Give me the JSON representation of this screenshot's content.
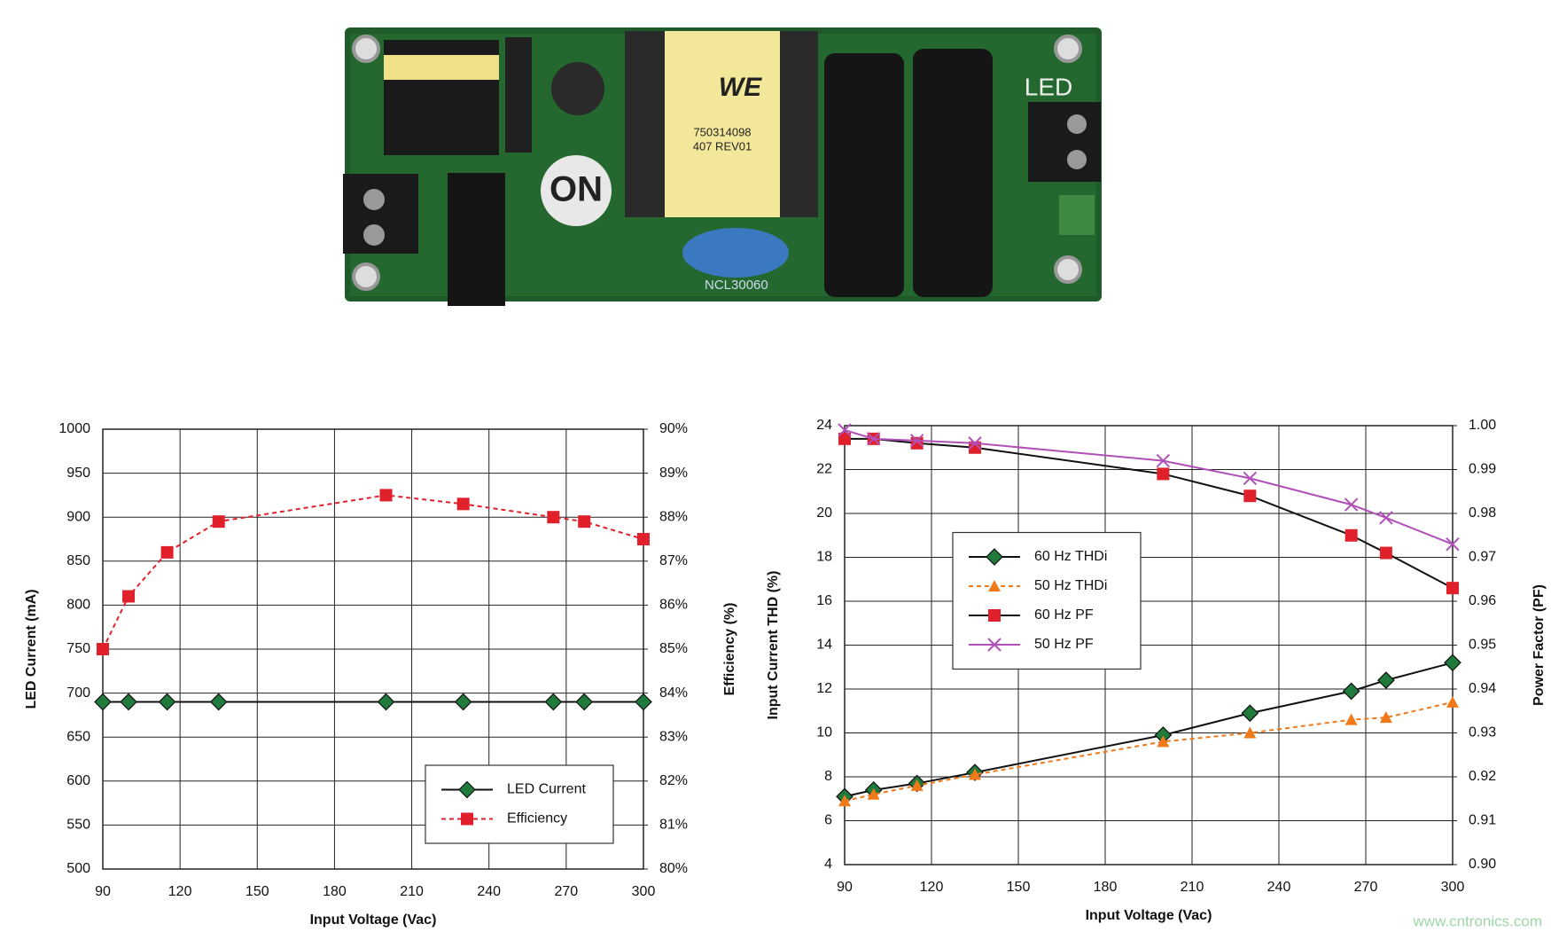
{
  "photo": {
    "connector_label": "LED",
    "logo": "ON",
    "part_number": "NCL30060",
    "transformer_brand": "WE",
    "transformer_code": "750314098",
    "transformer_rev": "407 REV01"
  },
  "chart_data": [
    {
      "type": "line",
      "x_label": "Input Voltage (Vac)",
      "y_label": "LED Current (mA)",
      "y2_label": "Efficiency (%)",
      "x": [
        90,
        100,
        115,
        135,
        200,
        230,
        265,
        277,
        300
      ],
      "xlim": [
        90,
        300
      ],
      "xticks": [
        90,
        120,
        150,
        180,
        210,
        240,
        270,
        300
      ],
      "ylim": [
        500,
        1000
      ],
      "yticks": [
        500,
        550,
        600,
        650,
        700,
        750,
        800,
        850,
        900,
        950,
        1000
      ],
      "y2lim": [
        80,
        90
      ],
      "y2ticks": [
        {
          "value": 80,
          "label": "80%"
        },
        {
          "value": 81,
          "label": "81%"
        },
        {
          "value": 82,
          "label": "82%"
        },
        {
          "value": 83,
          "label": "83%"
        },
        {
          "value": 84,
          "label": "84%"
        },
        {
          "value": 85,
          "label": "85%"
        },
        {
          "value": 86,
          "label": "86%"
        },
        {
          "value": 87,
          "label": "87%"
        },
        {
          "value": 88,
          "label": "88%"
        },
        {
          "value": 89,
          "label": "89%"
        },
        {
          "value": 90,
          "label": "90%"
        }
      ],
      "grid": true,
      "legend": "lower right",
      "series": [
        {
          "name": "LED Current",
          "color": "#1f7a3c",
          "line_color": "#111111",
          "marker": "diamond",
          "dashed": false,
          "values": [
            690,
            690,
            690,
            690,
            690,
            690,
            690,
            690,
            690
          ]
        },
        {
          "name": "Efficiency",
          "color": "#e0202a",
          "line_color": "#e0202a",
          "marker": "square",
          "dashed": true,
          "axis": "y2",
          "values": [
            85.0,
            86.2,
            87.2,
            87.9,
            88.5,
            88.3,
            88.0,
            87.9,
            87.5
          ]
        }
      ]
    },
    {
      "type": "line",
      "x_label": "Input Voltage (Vac)",
      "y_label": "Input Current THD (%)",
      "y2_label": "Power Factor (PF)",
      "x": [
        90,
        100,
        115,
        135,
        200,
        230,
        265,
        277,
        300
      ],
      "xlim": [
        90,
        300
      ],
      "xticks": [
        90,
        120,
        150,
        180,
        210,
        240,
        270,
        300
      ],
      "ylim": [
        4,
        24
      ],
      "yticks": [
        4,
        6,
        8,
        10,
        12,
        14,
        16,
        18,
        20,
        22,
        24
      ],
      "y2lim": [
        0.9,
        1.0
      ],
      "y2ticks": [
        {
          "value": 0.9,
          "label": "0.90"
        },
        0.91,
        0.92,
        0.93,
        0.94,
        0.95,
        0.96,
        0.97,
        0.98,
        0.99,
        {
          "value": 1.0,
          "label": "1.00"
        }
      ],
      "grid": true,
      "legend": "center left",
      "series": [
        {
          "name": "60 Hz THDi",
          "color": "#1f7a3c",
          "line_color": "#111111",
          "marker": "diamond",
          "dashed": false,
          "values": [
            7.1,
            7.4,
            7.7,
            8.2,
            9.9,
            10.9,
            11.9,
            12.4,
            13.2
          ]
        },
        {
          "name": "50 Hz THDi",
          "color": "#f07a1a",
          "line_color": "#f07a1a",
          "marker": "triangle",
          "dashed": true,
          "values": [
            6.9,
            7.2,
            7.6,
            8.1,
            9.6,
            10.0,
            10.6,
            10.7,
            11.4
          ]
        },
        {
          "name": "60 Hz PF",
          "color": "#e0202a",
          "line_color": "#111111",
          "marker": "square",
          "dashed": false,
          "axis": "y2",
          "values": [
            0.997,
            0.997,
            0.996,
            0.995,
            0.989,
            0.984,
            0.975,
            0.971,
            0.963
          ]
        },
        {
          "name": "50 Hz PF",
          "color": "#b050b8",
          "line_color": "#b050b8",
          "marker": "x",
          "dashed": false,
          "axis": "y2",
          "values": [
            0.999,
            0.997,
            0.9966,
            0.996,
            0.992,
            0.988,
            0.982,
            0.979,
            0.973
          ]
        }
      ]
    }
  ],
  "watermark": "www.cntronics.com"
}
